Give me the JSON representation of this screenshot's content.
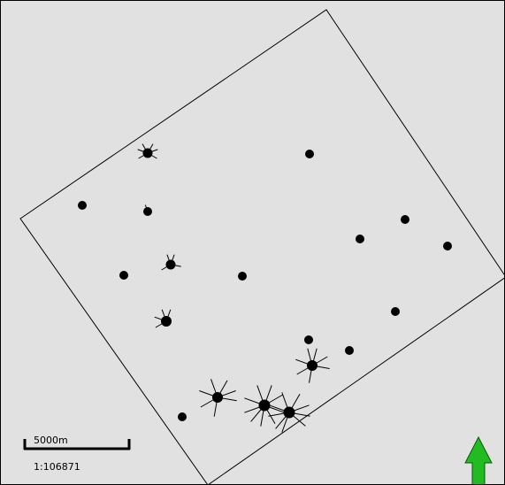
{
  "map": {
    "scale_bar_label": "5000m",
    "scale_ratio": "1:106871",
    "north_arrow_color": "#22bb22",
    "background_color": "#e1e1e1",
    "point_color": "#000000"
  }
}
